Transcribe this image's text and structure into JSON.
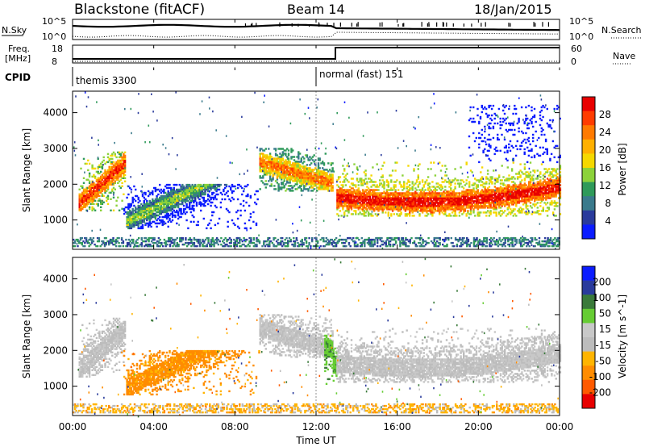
{
  "header": {
    "station": "Blackstone (fitACF)",
    "beam": "Beam 14",
    "date": "18/Jan/2015"
  },
  "noise_panel": {
    "left_label": "N.Sky",
    "right_label": "N.Search",
    "left_ticks": [
      "10^5",
      "10^0"
    ],
    "right_ticks": [
      "10^5",
      "10^0"
    ]
  },
  "freq_panel": {
    "left_label_top": "Freq.",
    "left_label_bottom": "[MHz]",
    "right_label": "Nave",
    "left_ticks": [
      "18",
      "8"
    ],
    "right_ticks": [
      "60",
      "0"
    ]
  },
  "cpid_panel": {
    "label": "CPID",
    "modes": [
      {
        "name": "themis 3300",
        "start_hour": 0
      },
      {
        "name": "normal (fast) 151",
        "start_hour": 12
      }
    ]
  },
  "colors": {
    "power": [
      "#0b1cff",
      "#2a3b9c",
      "#3a7a8c",
      "#2f9a5a",
      "#8cd23a",
      "#f5d800",
      "#ffb000",
      "#ff7a00",
      "#ff3c00",
      "#e80000"
    ],
    "velocity": [
      "#e80000",
      "#ff5a00",
      "#ff8c00",
      "#ffb400",
      "#bcbcbc",
      "#c8c8c8",
      "#66cc33",
      "#3a7a3a",
      "#2a3b9c",
      "#0b1cff"
    ]
  },
  "chart_data": [
    {
      "type": "heatmap",
      "panel": "power",
      "ylabel": "Slant Range [km]",
      "ylim": [
        180,
        4600
      ],
      "yticks": [
        1000,
        2000,
        3000,
        4000
      ],
      "colorbar": {
        "label": "Power [dB]",
        "range": [
          0,
          32
        ],
        "ticks": [
          4,
          8,
          12,
          16,
          20,
          24,
          28
        ]
      },
      "echo_bands": [
        {
          "t": [
            0.3,
            2.6
          ],
          "range": [
            1250,
            2900
          ],
          "power_db": 20
        },
        {
          "t": [
            2.5,
            9.2
          ],
          "range": [
            750,
            2000
          ],
          "power_db": 6
        },
        {
          "t": [
            9.2,
            12.8
          ],
          "range": [
            1800,
            3000
          ],
          "power_db": 16
        },
        {
          "t": [
            13.0,
            24.0
          ],
          "range": [
            1100,
            2600
          ],
          "power_db": 22
        },
        {
          "t": [
            19.5,
            24.0
          ],
          "range": [
            2600,
            4200
          ],
          "power_db": 6
        },
        {
          "t": [
            0.0,
            24.0
          ],
          "range": [
            250,
            480
          ],
          "power_db": 6
        }
      ]
    },
    {
      "type": "heatmap",
      "panel": "velocity",
      "ylabel": "Slant Range [km]",
      "ylim": [
        180,
        4600
      ],
      "yticks": [
        1000,
        2000,
        3000,
        4000
      ],
      "xlabel": "Time UT",
      "xlim": [
        0,
        24
      ],
      "xticks": [
        "00:00",
        "04:00",
        "08:00",
        "12:00",
        "16:00",
        "20:00",
        "00:00"
      ],
      "colorbar": {
        "label": "Velocity [m s^-1]",
        "range": [
          -250,
          250
        ],
        "ticks": [
          200,
          100,
          50,
          15,
          -15,
          -50,
          -100,
          -200
        ]
      },
      "echo_bands": [
        {
          "t": [
            0.3,
            2.6
          ],
          "range": [
            1250,
            2900
          ],
          "velocity": 0
        },
        {
          "t": [
            2.5,
            9.2
          ],
          "range": [
            750,
            2000
          ],
          "velocity": -60
        },
        {
          "t": [
            9.2,
            12.8
          ],
          "range": [
            1800,
            3000
          ],
          "velocity": 0
        },
        {
          "t": [
            12.4,
            13.0
          ],
          "range": [
            1000,
            2400
          ],
          "velocity": 40
        },
        {
          "t": [
            13.0,
            24.0
          ],
          "range": [
            1100,
            2600
          ],
          "velocity": 0
        },
        {
          "t": [
            0.0,
            24.0
          ],
          "range": [
            250,
            480
          ],
          "velocity": -40
        }
      ]
    }
  ]
}
